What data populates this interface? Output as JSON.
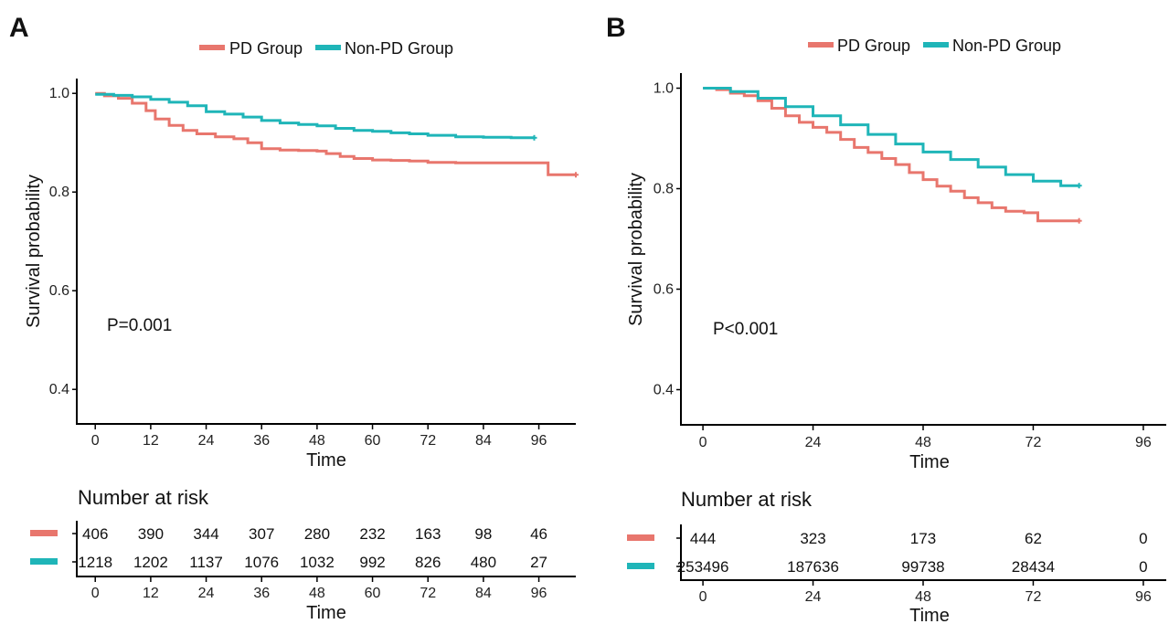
{
  "chart_data": [
    {
      "type": "line",
      "panel_label": "A",
      "legend": [
        {
          "name": "PD Group",
          "color": "#E8766D"
        },
        {
          "name": "Non-PD Group",
          "color": "#1FB5B8"
        }
      ],
      "xlabel": "Time",
      "ylabel": "Survival probability",
      "xticks": [
        0,
        12,
        24,
        36,
        48,
        60,
        72,
        84,
        96
      ],
      "xlim": [
        -4,
        104
      ],
      "yticks": [
        0.4,
        0.6,
        0.8,
        1.0
      ],
      "ytick_labels": [
        "0.4",
        "0.6",
        "0.8",
        "1.0"
      ],
      "ylim": [
        0.33,
        1.03
      ],
      "pvalue": "P=0.001",
      "series": [
        {
          "name": "PD Group",
          "color": "#E8766D",
          "points": [
            [
              0,
              1.0
            ],
            [
              2,
              0.995
            ],
            [
              5,
              0.99
            ],
            [
              8,
              0.98
            ],
            [
              11,
              0.965
            ],
            [
              13,
              0.948
            ],
            [
              16,
              0.935
            ],
            [
              19,
              0.925
            ],
            [
              22,
              0.918
            ],
            [
              26,
              0.912
            ],
            [
              30,
              0.908
            ],
            [
              33,
              0.9
            ],
            [
              36,
              0.888
            ],
            [
              40,
              0.885
            ],
            [
              44,
              0.884
            ],
            [
              48,
              0.883
            ],
            [
              50,
              0.878
            ],
            [
              53,
              0.872
            ],
            [
              56,
              0.868
            ],
            [
              60,
              0.865
            ],
            [
              64,
              0.864
            ],
            [
              68,
              0.863
            ],
            [
              72,
              0.86
            ],
            [
              78,
              0.859
            ],
            [
              84,
              0.859
            ],
            [
              90,
              0.859
            ],
            [
              96,
              0.859
            ],
            [
              98,
              0.859
            ],
            [
              98,
              0.835
            ],
            [
              104,
              0.835
            ]
          ]
        },
        {
          "name": "Non-PD Group",
          "color": "#1FB5B8",
          "points": [
            [
              0,
              0.998
            ],
            [
              4,
              0.996
            ],
            [
              8,
              0.993
            ],
            [
              12,
              0.988
            ],
            [
              16,
              0.982
            ],
            [
              20,
              0.975
            ],
            [
              24,
              0.963
            ],
            [
              28,
              0.958
            ],
            [
              32,
              0.952
            ],
            [
              36,
              0.945
            ],
            [
              40,
              0.94
            ],
            [
              44,
              0.937
            ],
            [
              48,
              0.934
            ],
            [
              52,
              0.929
            ],
            [
              56,
              0.925
            ],
            [
              60,
              0.923
            ],
            [
              64,
              0.92
            ],
            [
              68,
              0.918
            ],
            [
              72,
              0.915
            ],
            [
              78,
              0.912
            ],
            [
              84,
              0.911
            ],
            [
              90,
              0.91
            ],
            [
              95,
              0.91
            ]
          ]
        }
      ],
      "risk_table": {
        "title": "Number at risk",
        "xlabel": "Time",
        "times": [
          0,
          12,
          24,
          36,
          48,
          60,
          72,
          84,
          96
        ],
        "rows": [
          {
            "name": "PD Group",
            "color": "#E8766D",
            "values": [
              406,
              390,
              344,
              307,
              280,
              232,
              163,
              98,
              46
            ]
          },
          {
            "name": "Non-PD Group",
            "color": "#1FB5B8",
            "values": [
              1218,
              1202,
              1137,
              1076,
              1032,
              992,
              826,
              480,
              27
            ]
          }
        ]
      }
    },
    {
      "type": "line",
      "panel_label": "B",
      "legend": [
        {
          "name": "PD Group",
          "color": "#E8766D"
        },
        {
          "name": "Non-PD Group",
          "color": "#1FB5B8"
        }
      ],
      "xlabel": "Time",
      "ylabel": "Survival probability",
      "xticks": [
        0,
        24,
        48,
        72,
        96
      ],
      "xlim": [
        -4.8,
        101
      ],
      "yticks": [
        0.4,
        0.6,
        0.8,
        1.0
      ],
      "ytick_labels": [
        "0.4",
        "0.6",
        "0.8",
        "1.0"
      ],
      "ylim": [
        0.33,
        1.03
      ],
      "pvalue": "P<0.001",
      "series": [
        {
          "name": "PD Group",
          "color": "#E8766D",
          "points": [
            [
              0,
              1.0
            ],
            [
              3,
              0.997
            ],
            [
              6,
              0.99
            ],
            [
              9,
              0.985
            ],
            [
              12,
              0.975
            ],
            [
              15,
              0.96
            ],
            [
              18,
              0.945
            ],
            [
              21,
              0.932
            ],
            [
              24,
              0.922
            ],
            [
              27,
              0.912
            ],
            [
              30,
              0.898
            ],
            [
              33,
              0.882
            ],
            [
              36,
              0.872
            ],
            [
              39,
              0.86
            ],
            [
              42,
              0.848
            ],
            [
              45,
              0.832
            ],
            [
              48,
              0.818
            ],
            [
              51,
              0.805
            ],
            [
              54,
              0.795
            ],
            [
              57,
              0.782
            ],
            [
              60,
              0.772
            ],
            [
              63,
              0.762
            ],
            [
              66,
              0.755
            ],
            [
              70,
              0.752
            ],
            [
              73,
              0.752
            ],
            [
              73,
              0.736
            ],
            [
              82,
              0.736
            ]
          ]
        },
        {
          "name": "Non-PD Group",
          "color": "#1FB5B8",
          "points": [
            [
              0,
              1.0
            ],
            [
              6,
              0.993
            ],
            [
              12,
              0.98
            ],
            [
              18,
              0.963
            ],
            [
              24,
              0.945
            ],
            [
              30,
              0.927
            ],
            [
              36,
              0.908
            ],
            [
              42,
              0.889
            ],
            [
              48,
              0.873
            ],
            [
              54,
              0.858
            ],
            [
              60,
              0.843
            ],
            [
              66,
              0.828
            ],
            [
              72,
              0.815
            ],
            [
              78,
              0.806
            ],
            [
              82,
              0.806
            ]
          ]
        }
      ],
      "risk_table": {
        "title": "Number at risk",
        "xlabel": "Time",
        "times": [
          0,
          24,
          48,
          72,
          96
        ],
        "rows": [
          {
            "name": "PD Group",
            "color": "#E8766D",
            "values": [
              444,
              323,
              173,
              62,
              0
            ]
          },
          {
            "name": "Non-PD Group",
            "color": "#1FB5B8",
            "values": [
              253496,
              187636,
              99738,
              28434,
              0
            ]
          }
        ]
      }
    }
  ]
}
